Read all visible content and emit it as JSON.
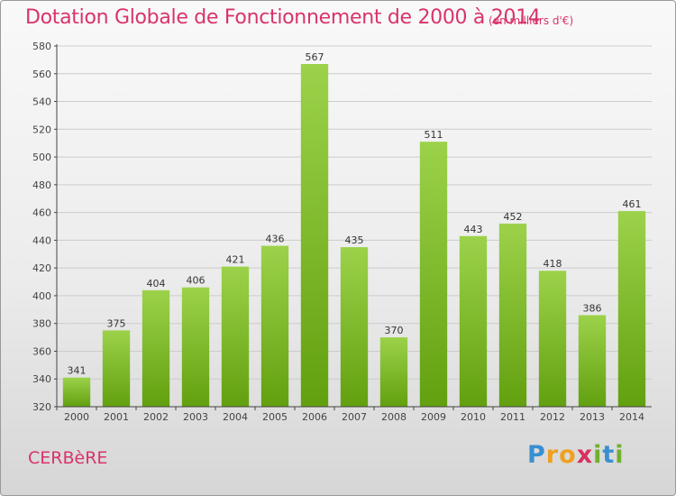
{
  "chart_data": {
    "type": "bar",
    "title": "Dotation Globale de Fonctionnement de 2000 à 2014",
    "subtitle": "(en milliers d'€)",
    "categories": [
      "2000",
      "2001",
      "2002",
      "2003",
      "2004",
      "2005",
      "2006",
      "2007",
      "2008",
      "2009",
      "2010",
      "2011",
      "2012",
      "2013",
      "2014"
    ],
    "values": [
      341,
      375,
      404,
      406,
      421,
      436,
      567,
      435,
      370,
      511,
      443,
      452,
      418,
      386,
      461
    ],
    "ylim": [
      320,
      580
    ],
    "yticks": [
      320,
      340,
      360,
      380,
      400,
      420,
      440,
      460,
      480,
      500,
      520,
      540,
      560,
      580
    ],
    "grid": true,
    "bar_color_top": "#9cd24a",
    "bar_color_bottom": "#62a00f",
    "legend": "none"
  },
  "commune": "CERBèRE",
  "logo": {
    "letters": [
      "P",
      "r",
      "o",
      "x",
      "i",
      "t",
      "i"
    ],
    "colors": [
      "#3a8fd0",
      "#f0a020",
      "#f0a020",
      "#d83060",
      "#70b030",
      "#3a8fd0",
      "#70b030"
    ]
  },
  "colors": {
    "title": "#d9336b",
    "grid": "#cccccc",
    "axis": "#444444"
  }
}
